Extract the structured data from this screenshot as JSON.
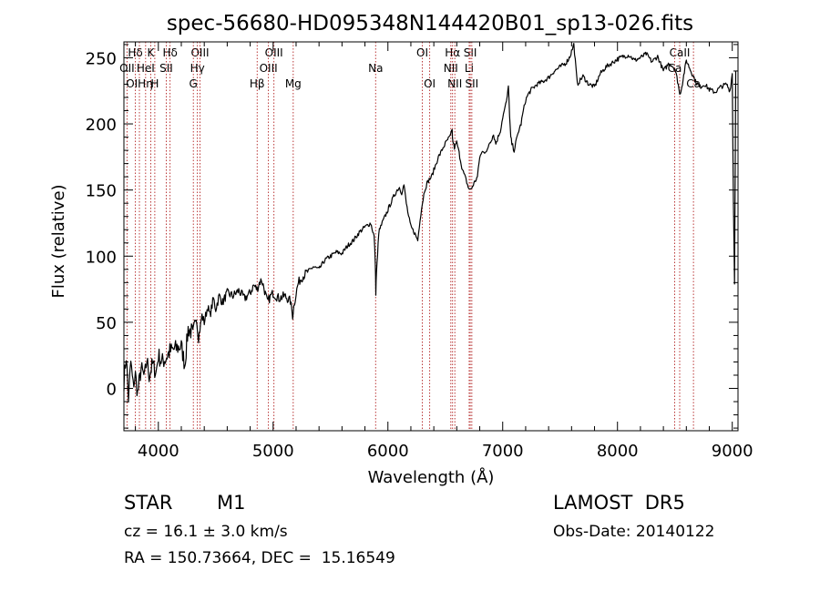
{
  "chart_data": {
    "type": "line",
    "title": "spec-56680-HD095348N144420B01_sp13-026.fits",
    "xlabel": "Wavelength (Å)",
    "ylabel": "Flux (relative)",
    "xlim": [
      3700,
      9050
    ],
    "ylim": [
      -32,
      262
    ],
    "xticks": [
      4000,
      5000,
      6000,
      7000,
      8000,
      9000
    ],
    "yticks": [
      0,
      50,
      100,
      150,
      200,
      250
    ],
    "grid": false,
    "series": [
      {
        "color": "#000000",
        "x": [
          3700,
          3720,
          3740,
          3760,
          3780,
          3800,
          3820,
          3850,
          3880,
          3900,
          3920,
          3950,
          3980,
          4000,
          4030,
          4060,
          4100,
          4150,
          4200,
          4230,
          4260,
          4300,
          4330,
          4350,
          4380,
          4400,
          4430,
          4450,
          4480,
          4500,
          4530,
          4560,
          4600,
          4650,
          4700,
          4750,
          4800,
          4830,
          4860,
          4880,
          4900,
          4920,
          4950,
          4980,
          5000,
          5050,
          5100,
          5150,
          5170,
          5180,
          5200,
          5220,
          5250,
          5300,
          5350,
          5400,
          5450,
          5500,
          5550,
          5600,
          5650,
          5700,
          5750,
          5800,
          5850,
          5880,
          5890,
          5895,
          5900,
          5910,
          5920,
          5950,
          6000,
          6050,
          6080,
          6100,
          6120,
          6140,
          6160,
          6180,
          6200,
          6230,
          6260,
          6280,
          6300,
          6320,
          6340,
          6360,
          6380,
          6400,
          6420,
          6440,
          6460,
          6480,
          6500,
          6520,
          6540,
          6560,
          6563,
          6580,
          6600,
          6620,
          6650,
          6680,
          6700,
          6720,
          6750,
          6780,
          6800,
          6830,
          6860,
          6880,
          6900,
          6920,
          6940,
          6960,
          6980,
          7000,
          7020,
          7040,
          7050,
          7060,
          7070,
          7080,
          7100,
          7120,
          7140,
          7160,
          7180,
          7200,
          7220,
          7250,
          7300,
          7350,
          7400,
          7450,
          7500,
          7550,
          7580,
          7590,
          7600,
          7620,
          7650,
          7700,
          7750,
          7800,
          7850,
          7900,
          7950,
          8000,
          8050,
          8100,
          8150,
          8200,
          8250,
          8300,
          8350,
          8400,
          8450,
          8500,
          8530,
          8542,
          8560,
          8600,
          8640,
          8662,
          8680,
          8720,
          8760,
          8800,
          8850,
          8900,
          8950,
          8980,
          9000,
          9010,
          9020,
          9030
        ],
        "y": [
          5,
          25,
          -8,
          20,
          2,
          10,
          -4,
          15,
          8,
          22,
          10,
          18,
          12,
          25,
          20,
          22,
          28,
          30,
          32,
          18,
          45,
          42,
          55,
          38,
          55,
          50,
          62,
          55,
          68,
          60,
          70,
          65,
          72,
          70,
          74,
          68,
          72,
          78,
          75,
          80,
          82,
          76,
          65,
          70,
          72,
          68,
          70,
          66,
          55,
          62,
          72,
          80,
          84,
          88,
          92,
          90,
          97,
          100,
          103,
          102,
          108,
          112,
          118,
          122,
          125,
          115,
          95,
          72,
          88,
          100,
          118,
          125,
          135,
          145,
          150,
          152,
          148,
          154,
          140,
          130,
          122,
          118,
          112,
          128,
          140,
          150,
          155,
          158,
          160,
          165,
          170,
          175,
          178,
          182,
          185,
          188,
          190,
          195,
          188,
          182,
          186,
          178,
          165,
          158,
          152,
          150,
          155,
          160,
          175,
          180,
          178,
          185,
          188,
          192,
          185,
          190,
          195,
          205,
          212,
          220,
          230,
          205,
          190,
          185,
          180,
          188,
          195,
          200,
          210,
          218,
          222,
          226,
          230,
          232,
          235,
          240,
          243,
          246,
          250,
          252,
          255,
          260,
          230,
          236,
          230,
          228,
          238,
          243,
          246,
          249,
          251,
          252,
          248,
          250,
          253,
          247,
          251,
          240,
          246,
          242,
          230,
          222,
          228,
          248,
          240,
          236,
          232,
          228,
          230,
          226,
          224,
          228,
          230,
          225,
          238,
          140,
          80,
          240
        ]
      }
    ],
    "line_markers": [
      {
        "label": "Hδ",
        "x": 3800,
        "row": 0
      },
      {
        "label": "K",
        "x": 3934,
        "row": 0
      },
      {
        "label": "Hδ",
        "x": 4102,
        "row": 0
      },
      {
        "label": "OIII",
        "x": 4363,
        "row": 0
      },
      {
        "label": "OIII",
        "x": 5007,
        "row": 0
      },
      {
        "label": "OI",
        "x": 6300,
        "row": 0
      },
      {
        "label": "Hα",
        "x": 6563,
        "row": 0
      },
      {
        "label": "SII",
        "x": 6717,
        "row": 0
      },
      {
        "label": "CaII",
        "x": 8542,
        "row": 0
      },
      {
        "label": "OII",
        "x": 3727,
        "row": 1
      },
      {
        "label": "HeI",
        "x": 3889,
        "row": 1
      },
      {
        "label": "SII",
        "x": 4069,
        "row": 1
      },
      {
        "label": "Hγ",
        "x": 4340,
        "row": 1
      },
      {
        "label": "OIII",
        "x": 4959,
        "row": 1
      },
      {
        "label": "Na",
        "x": 5893,
        "row": 1
      },
      {
        "label": "NII",
        "x": 6548,
        "row": 1
      },
      {
        "label": "Li",
        "x": 6708,
        "row": 1
      },
      {
        "label": "Ca",
        "x": 8498,
        "row": 1
      },
      {
        "label": "OIHη",
        "x": 3835,
        "row": 2
      },
      {
        "label": "H",
        "x": 3969,
        "row": 2
      },
      {
        "label": "G",
        "x": 4305,
        "row": 2
      },
      {
        "label": "Hβ",
        "x": 4861,
        "row": 2
      },
      {
        "label": "Mg",
        "x": 5175,
        "row": 2
      },
      {
        "label": "OI",
        "x": 6364,
        "row": 2
      },
      {
        "label": "NII",
        "x": 6583,
        "row": 2
      },
      {
        "label": "SII",
        "x": 6731,
        "row": 2
      },
      {
        "label": "Ca",
        "x": 8662,
        "row": 2
      }
    ]
  },
  "info": {
    "object_class": "STAR",
    "subclass": "M1",
    "survey": "LAMOST  DR5",
    "redshift": "cz = 16.1 ± 3.0 km/s",
    "obs_date": "Obs-Date: 20140122",
    "coords": "RA = 150.73664, DEC =  15.16549"
  }
}
